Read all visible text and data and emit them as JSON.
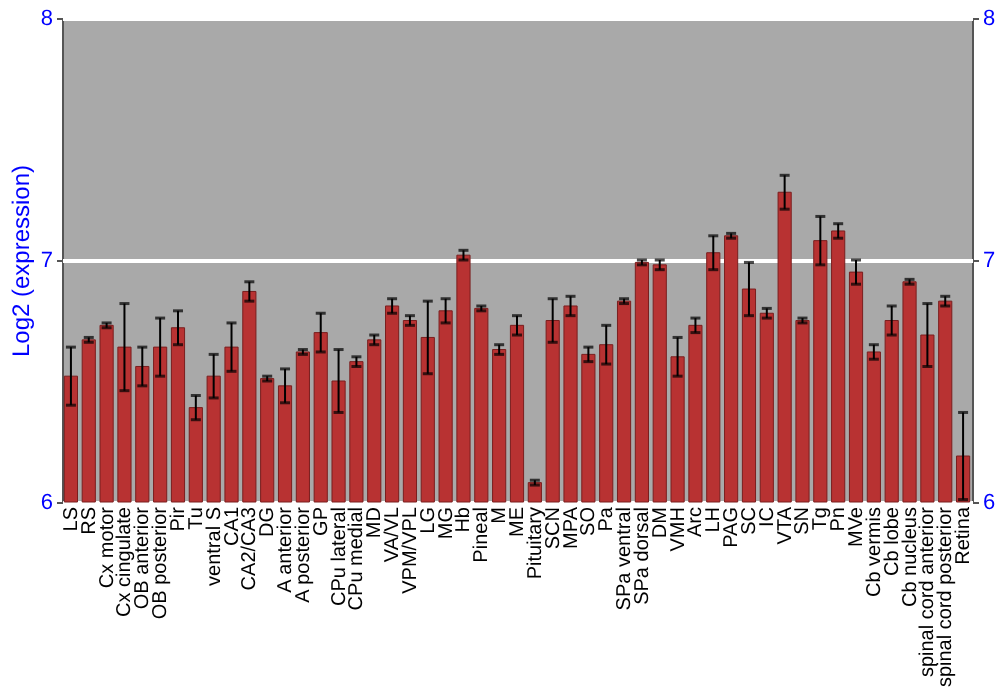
{
  "chart_data": {
    "type": "bar",
    "ylabel": "Log2 (expression)",
    "categories": [
      "LS",
      "RS",
      "Cx motor",
      "Cx cingulate",
      "OB anterior",
      "OB posterior",
      "Pir",
      "Tu",
      "ventral S",
      "CA1",
      "CA2/CA3",
      "DG",
      "A anterior",
      "A posterior",
      "GP",
      "CPu lateral",
      "CPu medial",
      "MD",
      "VA/VL",
      "VPM/VPL",
      "LG",
      "MG",
      "Hb",
      "Pineal",
      "M",
      "ME",
      "Pituitary",
      "SCN",
      "MPA",
      "SO",
      "Pa",
      "SPa ventral",
      "SPa dorsal",
      "DM",
      "VMH",
      "Arc",
      "LH",
      "PAG",
      "SC",
      "IC",
      "VTA",
      "SN",
      "Tg",
      "Pn",
      "MVe",
      "Cb vermis",
      "Cb lobe",
      "Cb nucleus",
      "spinal cord anterior",
      "spinal cord posterior",
      "Retina"
    ],
    "values": [
      6.52,
      6.67,
      6.73,
      6.64,
      6.56,
      6.64,
      6.72,
      6.39,
      6.52,
      6.64,
      6.87,
      6.51,
      6.48,
      6.62,
      6.7,
      6.5,
      6.58,
      6.67,
      6.81,
      6.75,
      6.68,
      6.79,
      7.02,
      6.8,
      6.63,
      6.73,
      6.08,
      6.75,
      6.81,
      6.61,
      6.65,
      6.83,
      6.99,
      6.98,
      6.6,
      6.73,
      7.03,
      7.1,
      6.88,
      6.78,
      7.28,
      6.75,
      7.08,
      7.12,
      6.95,
      6.62,
      6.75,
      6.91,
      6.69,
      6.83,
      6.19
    ],
    "errors": [
      0.12,
      0.01,
      0.01,
      0.18,
      0.08,
      0.12,
      0.07,
      0.05,
      0.09,
      0.1,
      0.04,
      0.01,
      0.07,
      0.01,
      0.08,
      0.13,
      0.02,
      0.02,
      0.03,
      0.02,
      0.15,
      0.05,
      0.02,
      0.01,
      0.02,
      0.04,
      0.01,
      0.09,
      0.04,
      0.03,
      0.08,
      0.01,
      0.01,
      0.02,
      0.08,
      0.03,
      0.07,
      0.01,
      0.11,
      0.02,
      0.07,
      0.01,
      0.1,
      0.03,
      0.05,
      0.03,
      0.06,
      0.01,
      0.13,
      0.02,
      0.18
    ],
    "color": "#b83232",
    "ylim": [
      6,
      8
    ],
    "yticks": [
      6,
      7,
      8
    ],
    "y2lim": [
      6,
      8
    ],
    "y2ticks": [
      6,
      7,
      8
    ],
    "grid": "y"
  }
}
